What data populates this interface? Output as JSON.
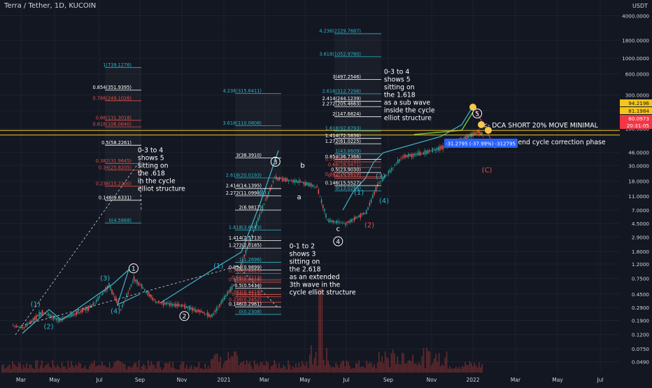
{
  "header": {
    "title": "Terra / Tether, 1D, KUCOIN",
    "currency": "USDT"
  },
  "colors": {
    "background": "#131722",
    "text": "#d1d4dc",
    "fib_cyan": "#2cb5c6",
    "fib_red": "#e0504a",
    "fib_white": "#ffffff",
    "trendline": "#3fb6c8",
    "green_line": "#67c23a",
    "yellow_band": "#f0c020",
    "candle_up": "#26a69a",
    "candle_down": "#ef5350",
    "volume": "#7a3030",
    "label_blue": "#2962ff",
    "label_red": "#f23645",
    "label_yellow": "#f5c518"
  },
  "chart_data": {
    "type": "candlestick",
    "yscale": "log",
    "x_ticks": [
      "Mar",
      "May",
      "Jul",
      "Sep",
      "Nov",
      "2021",
      "Mar",
      "May",
      "Jul",
      "Sep",
      "Nov",
      "2022",
      "Mar",
      "May",
      "Jul"
    ],
    "y_ticks": [
      "4000.0000",
      "1800.0000",
      "1000.0000",
      "600.0000",
      "300.0000",
      "180.0000",
      "100.0000",
      "46.0000",
      "30.0000",
      "18.0000",
      "11.0000",
      "7.0000",
      "4.5000",
      "2.9000",
      "1.8000",
      "1.2000",
      "0.7500",
      "0.4500",
      "0.2900",
      "0.1900",
      "0.1200",
      "0.0750",
      "0.0490"
    ],
    "price_labels": [
      {
        "text": "94.2196",
        "type": "yellow"
      },
      {
        "text": "81.1984",
        "type": "yellow"
      },
      {
        "text": "80.0973",
        "type": "red"
      },
      {
        "text": "20:31:05",
        "type": "red"
      }
    ],
    "price_path": [
      {
        "date": "2020-02-28",
        "price": 0.16
      },
      {
        "date": "2020-03-15",
        "price": 0.15
      },
      {
        "date": "2020-04-10",
        "price": 0.25
      },
      {
        "date": "2020-05-05",
        "price": 0.19
      },
      {
        "date": "2020-06-20",
        "price": 0.3
      },
      {
        "date": "2020-07-15",
        "price": 0.6
      },
      {
        "date": "2020-08-01",
        "price": 0.27
      },
      {
        "date": "2020-08-20",
        "price": 0.75
      },
      {
        "date": "2020-09-20",
        "price": 0.35
      },
      {
        "date": "2020-11-01",
        "price": 0.3
      },
      {
        "date": "2020-12-10",
        "price": 0.22
      },
      {
        "date": "2021-01-10",
        "price": 0.6
      },
      {
        "date": "2021-02-10",
        "price": 4.0
      },
      {
        "date": "2021-03-10",
        "price": 20.0
      },
      {
        "date": "2021-04-10",
        "price": 18.0
      },
      {
        "date": "2021-05-10",
        "price": 15.0
      },
      {
        "date": "2021-05-25",
        "price": 5.0
      },
      {
        "date": "2021-06-20",
        "price": 4.5
      },
      {
        "date": "2021-07-20",
        "price": 6.5
      },
      {
        "date": "2021-08-05",
        "price": 16.0
      },
      {
        "date": "2021-09-10",
        "price": 40.0
      },
      {
        "date": "2021-10-10",
        "price": 45.0
      },
      {
        "date": "2021-11-20",
        "price": 60.0
      },
      {
        "date": "2021-12-27",
        "price": 90.0
      },
      {
        "date": "2022-01-06",
        "price": 80.1
      }
    ],
    "fib_sets": [
      {
        "levels": [
          {
            "label": "1(739.1276)",
            "price": 739.13,
            "color": "cyan"
          },
          {
            "label": "0.854(351.9395)",
            "price": 351.94,
            "color": "white"
          },
          {
            "label": "0.786(249.1026)",
            "price": 249.1,
            "color": "red"
          },
          {
            "label": "0.66(131.3018)",
            "price": 131.3,
            "color": "red"
          },
          {
            "label": "0.618(106.0640)",
            "price": 106.06,
            "color": "red"
          },
          {
            "label": "0.5(58.2261)",
            "price": 58.23,
            "color": "white"
          },
          {
            "label": "0.382(31.9645)",
            "price": 31.96,
            "color": "red"
          },
          {
            "label": "0.34(25.8205)",
            "price": 25.82,
            "color": "red"
          },
          {
            "label": "0.236(15.2200)",
            "price": 15.22,
            "color": "red"
          },
          {
            "label": "0.146(9.6331)",
            "price": 9.63,
            "color": "white"
          },
          {
            "label": "0(4.5868)",
            "price": 4.587,
            "color": "cyan"
          }
        ]
      },
      {
        "levels": [
          {
            "label": "4.236(315.6411)",
            "price": 315.64,
            "color": "cyan"
          },
          {
            "label": "3.618(110.0808)",
            "price": 110.08,
            "color": "cyan"
          },
          {
            "label": "3(38.3910)",
            "price": 38.39,
            "color": "white"
          },
          {
            "label": "2.618(20.0193)",
            "price": 20.02,
            "color": "cyan"
          },
          {
            "label": "2.414(14.1395)",
            "price": 14.14,
            "color": "white"
          },
          {
            "label": "2.272(11.0998)",
            "price": 11.1,
            "color": "white"
          },
          {
            "label": "2(6.9817)",
            "price": 6.98,
            "color": "white"
          },
          {
            "label": "1.618(3.6443)",
            "price": 3.644,
            "color": "cyan"
          },
          {
            "label": "1.414(2.5713)",
            "price": 2.571,
            "color": "white"
          },
          {
            "label": "1.272(2.0185)",
            "price": 2.0185,
            "color": "white"
          },
          {
            "label": "1(1.2696)",
            "price": 1.27,
            "color": "cyan"
          },
          {
            "label": "0.854(0.9899)",
            "price": 0.99,
            "color": "white"
          },
          {
            "label": "0.786(0.8823)",
            "price": 0.882,
            "color": "red"
          },
          {
            "label": "0.66(0.7113)",
            "price": 0.711,
            "color": "red"
          },
          {
            "label": "0.618(0.6619)",
            "price": 0.662,
            "color": "red"
          },
          {
            "label": "0.5(0.5414)",
            "price": 0.541,
            "color": "white"
          },
          {
            "label": "0.382(0.4418)",
            "price": 0.442,
            "color": "red"
          },
          {
            "label": "0.34(0.4113)",
            "price": 0.411,
            "color": "red"
          },
          {
            "label": "0.236(0.3452)",
            "price": 0.345,
            "color": "red"
          },
          {
            "label": "0.146(0.2961)",
            "price": 0.296,
            "color": "white"
          },
          {
            "label": "0(0.2308)",
            "price": 0.231,
            "color": "cyan"
          }
        ]
      },
      {
        "levels": [
          {
            "label": "4.236(2229.7687)",
            "price": 2229.77,
            "color": "cyan"
          },
          {
            "label": "3.618(1052.9780)",
            "price": 1052.98,
            "color": "cyan"
          },
          {
            "label": "3(497.2546)",
            "price": 497.25,
            "color": "white"
          },
          {
            "label": "2.618(312.7298)",
            "price": 312.73,
            "color": "cyan"
          },
          {
            "label": "2.414(244.1239)",
            "price": 244.12,
            "color": "white"
          },
          {
            "label": "2.272(205.4663)",
            "price": 205.47,
            "color": "white"
          },
          {
            "label": "2(147.6824)",
            "price": 147.68,
            "color": "white"
          },
          {
            "label": "1.618(92.8793)",
            "price": 92.88,
            "color": "cyan"
          },
          {
            "label": "1.414(72.5836)",
            "price": 72.58,
            "color": "white"
          },
          {
            "label": "1.272(61.0225)",
            "price": 61.02,
            "color": "white"
          },
          {
            "label": "1(43.8609)",
            "price": 43.86,
            "color": "cyan"
          },
          {
            "label": "0.854(36.7366)",
            "price": 36.74,
            "color": "white"
          },
          {
            "label": "0.786(33.8411)",
            "price": 33.84,
            "color": "red"
          },
          {
            "label": "0.66(28.0471)",
            "price": 28.05,
            "color": "red"
          },
          {
            "label": "0.5(23.9030)",
            "price": 23.9,
            "color": "white"
          },
          {
            "label": "0.382(20.6610)",
            "price": 20.66,
            "color": "red"
          },
          {
            "label": "0.34(19.7112)",
            "price": 19.71,
            "color": "red"
          },
          {
            "label": "0.146(15.5527)",
            "price": 15.55,
            "color": "white"
          },
          {
            "label": "0(13.0264)",
            "price": 13.03,
            "color": "cyan"
          }
        ]
      }
    ],
    "wave_labels": [
      {
        "text": "(1)",
        "date": "2020-04-01",
        "price": 0.3,
        "color": "cyan"
      },
      {
        "text": "(2)",
        "date": "2020-04-20",
        "price": 0.145,
        "color": "cyan"
      },
      {
        "text": "(3)",
        "date": "2020-07-10",
        "price": 0.7,
        "color": "cyan"
      },
      {
        "text": "(4)",
        "date": "2020-07-25",
        "price": 0.24,
        "color": "cyan"
      },
      {
        "text": "1",
        "date": "2020-08-20",
        "price": 0.95,
        "color": "white",
        "circled": true
      },
      {
        "text": "2",
        "date": "2020-11-01",
        "price": 0.2,
        "color": "white",
        "circled": true
      },
      {
        "text": "(1)",
        "date": "2020-12-20",
        "price": 1.05,
        "color": "cyan"
      },
      {
        "text": "(3)",
        "date": "2021-02-20",
        "price": 11.5,
        "color": "cyan"
      },
      {
        "text": "3",
        "date": "2021-03-12",
        "price": 31,
        "color": "white",
        "circled": true
      },
      {
        "text": "b",
        "date": "2021-04-20",
        "price": 28,
        "color": "white"
      },
      {
        "text": "a",
        "date": "2021-04-15",
        "price": 10,
        "color": "white"
      },
      {
        "text": "c",
        "date": "2021-06-10",
        "price": 3.5,
        "color": "white"
      },
      {
        "text": "4",
        "date": "2021-06-10",
        "price": 2.3,
        "color": "white",
        "circled": true
      },
      {
        "text": "(1)",
        "date": "2021-07-10",
        "price": 11.5,
        "color": "cyan"
      },
      {
        "text": "(3)",
        "date": "2021-08-10",
        "price": 19.5,
        "color": "cyan"
      },
      {
        "text": "(2)",
        "date": "2021-07-25",
        "price": 4.0,
        "color": "red"
      },
      {
        "text": "(4)",
        "date": "2021-08-15",
        "price": 8.8,
        "color": "cyan"
      },
      {
        "text": "5",
        "date": "2021-12-27",
        "price": 150,
        "color": "white",
        "circled": true
      },
      {
        "text": "(C)",
        "date": "2022-01-10",
        "price": 24,
        "color": "red"
      }
    ],
    "annotations": [
      {
        "text": "0-3 to 4\nshows 5\nsitting on\nthe .618\nin the cycle\nelliot structure",
        "date": "2020-08-26",
        "price": 46
      },
      {
        "text": "0-1 to 2\nshows 3\nsitting on\nthe 2.618\nas an extended\n3th wave in the\ncycle elliot structure",
        "date": "2021-04-01",
        "price": 2.0
      },
      {
        "text": "0-3 to 4\nshows 5\nsitting on\nthe 1.618\nas a sub wave\ninside the cycle\nelliot structure",
        "date": "2021-08-15",
        "price": 600
      },
      {
        "text": "<- DCA SHORT 20% MOVE MINIMAL",
        "date": "2022-01-03",
        "price": 104
      },
      {
        "text": "time for a end cycle correction phase",
        "date": "2022-01-06",
        "price": 60
      }
    ],
    "measurement_label": "-31.2795 (-37.99%) -312795"
  }
}
